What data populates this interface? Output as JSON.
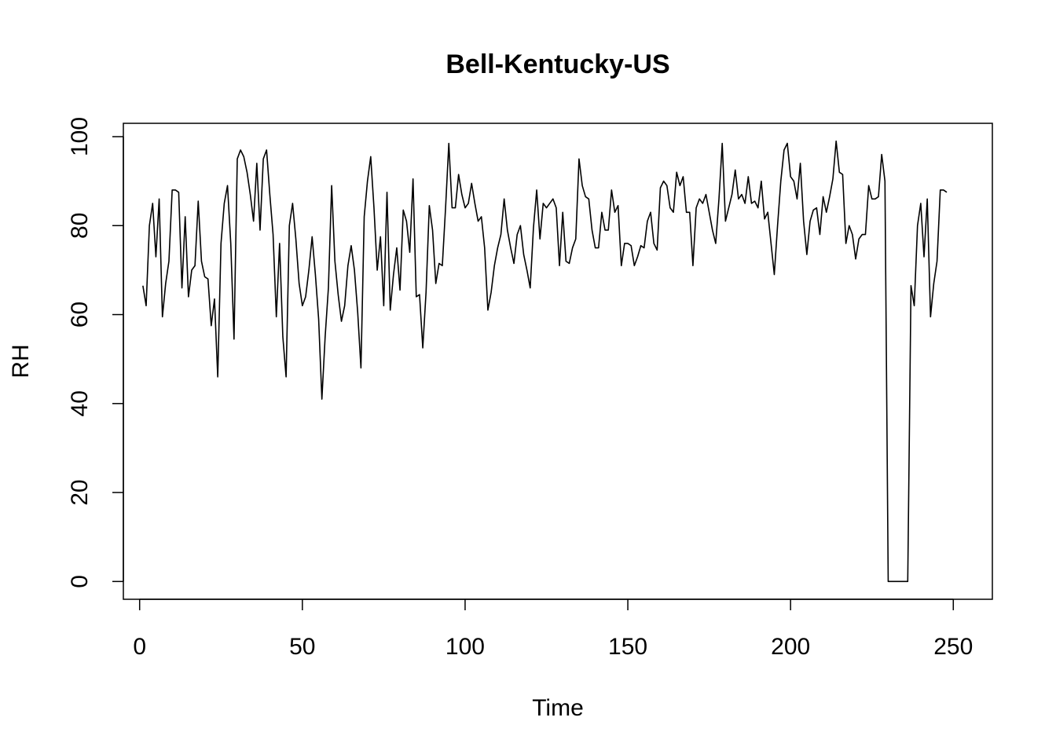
{
  "chart_data": {
    "type": "line",
    "title": "Bell-Kentucky-US",
    "xlabel": "Time",
    "ylabel": "RH",
    "xlim": [
      -5,
      262
    ],
    "ylim": [
      -4,
      103
    ],
    "xticks": [
      0,
      50,
      100,
      150,
      200,
      250
    ],
    "yticks": [
      0,
      20,
      40,
      60,
      80,
      100
    ],
    "grid": false,
    "line_color": "#000000",
    "series": [
      {
        "x_start": 1,
        "x_step": 1,
        "values": [
          66.5,
          62,
          80,
          85,
          73,
          86,
          59.5,
          67,
          72,
          88,
          88,
          87.5,
          66,
          82,
          64,
          70,
          71,
          85.5,
          72,
          68.5,
          68,
          57.5,
          63.5,
          46,
          76,
          85,
          89,
          76,
          54.5,
          95,
          97,
          95.5,
          92,
          87,
          81,
          94,
          79,
          95,
          97,
          87,
          78,
          59.5,
          76,
          55,
          46,
          80,
          85,
          77,
          67,
          62,
          64,
          70,
          77.5,
          69,
          59,
          41,
          55,
          66,
          89,
          72,
          64.5,
          58.5,
          62,
          71,
          75.5,
          70,
          60.5,
          48,
          82,
          90,
          95.5,
          84,
          70,
          77.5,
          62,
          87.5,
          61,
          69,
          75,
          65.5,
          83.5,
          81,
          74,
          90.5,
          64,
          64.5,
          52.5,
          65,
          84.5,
          79,
          67,
          71.5,
          71,
          84,
          98.5,
          84,
          84,
          91.5,
          87,
          84,
          85,
          89.5,
          85,
          81,
          82,
          75,
          61,
          65,
          71,
          75,
          78,
          86,
          79,
          75,
          71.5,
          78,
          80,
          73.5,
          70,
          66,
          79.5,
          88,
          77,
          85,
          84,
          85,
          86,
          84,
          71,
          83,
          72,
          71.5,
          75,
          77,
          95,
          89,
          86.5,
          86,
          79,
          75,
          75,
          83,
          79,
          79,
          88,
          83,
          84.5,
          71,
          76,
          76,
          75.5,
          71,
          73,
          75.5,
          75,
          81,
          83,
          76,
          74.5,
          88.5,
          90,
          89,
          84,
          83,
          92,
          89,
          91,
          83,
          83,
          71,
          84,
          86,
          85,
          87,
          83,
          79,
          76,
          86,
          98.5,
          81,
          84,
          87,
          92.5,
          86,
          87,
          85,
          91,
          85,
          85.5,
          84,
          90,
          81.5,
          83,
          76,
          69,
          80,
          90,
          97,
          98.5,
          91,
          90,
          86,
          94,
          81,
          73.5,
          81,
          83.5,
          84,
          78,
          86.5,
          83,
          86.5,
          90.5,
          99,
          92,
          91.5,
          76,
          80,
          78,
          72.5,
          77,
          78,
          78,
          89,
          86,
          86,
          86.5,
          96,
          90,
          0,
          0,
          0,
          0,
          0,
          0,
          0,
          66.5,
          62,
          80,
          85,
          73,
          86,
          59.5,
          67,
          72,
          88,
          88,
          87.5
        ]
      }
    ]
  }
}
